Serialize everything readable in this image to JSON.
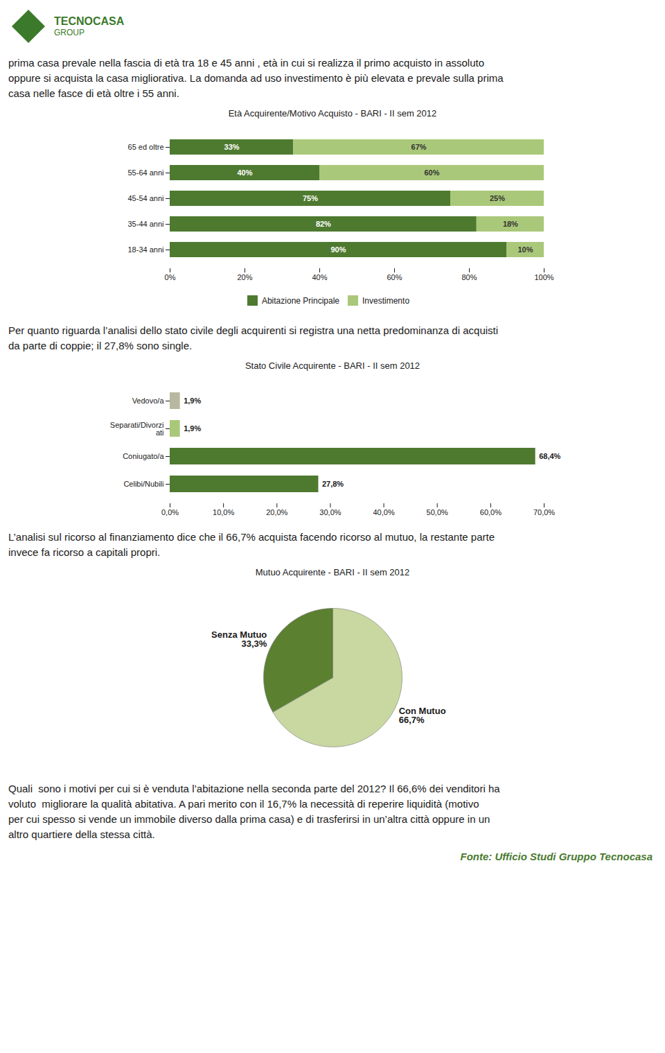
{
  "annotations": {
    "logo": [
      "TECNOCASA",
      "GROUP"
    ],
    "paragraphs": [
      [
        "prima casa prevale nella fascia di età tra 18 e 45 anni , età in cui si realizza il primo acquisto in assoluto",
        "oppure si acquista la casa migliorativa. La domanda ad uso investimento è più elevata e prevale sulla prima",
        "casa nelle fasce di età oltre i 55 anni."
      ],
      [
        "Per quanto riguarda l’analisi dello stato civile degli acquirenti si registra una netta predominanza di acquisti",
        "da parte di coppie; il 27,8% sono single."
      ],
      [
        "L’analisi sul ricorso al finanziamento dice che il 66,7% acquista facendo ricorso al mutuo, la restante parte",
        "invece fa ricorso a capitali propri."
      ],
      [
        "Quali  sono i motivi per cui si è venduta l’abitazione nella seconda parte del 2012? Il 66,6% dei venditori ha",
        "voluto  migliorare la qualità abitativa. A pari merito con il 16,7% la necessità di reperire liquidità (motivo",
        "per cui spesso si vende un immobile diverso dalla prima casa) e di trasferirsi in un’altra città oppure in un",
        "altro quartiere della stessa città."
      ]
    ],
    "footer": "Fonte: Ufficio Studi Gruppo Tecnocasa"
  },
  "chart_data": [
    {
      "type": "bar",
      "title": "Età Acquirente/Motivo Acquisto - BARI - II sem 2012",
      "orientation": "horizontal",
      "stacked": true,
      "categories": [
        "65 ed oltre",
        "55-64 anni",
        "45-54 anni",
        "35-44 anni",
        "18-34 anni"
      ],
      "series": [
        {
          "name": "Abitazione Principale",
          "color": "#4e7a30",
          "values": [
            33,
            40,
            75,
            82,
            90
          ],
          "value_labels": [
            "33%",
            "40%",
            "75%",
            "82%",
            "90%"
          ]
        },
        {
          "name": "Investimento",
          "color": "#aac87a",
          "values": [
            67,
            60,
            25,
            18,
            10
          ],
          "value_labels": [
            "67%",
            "60%",
            "25%",
            "18%",
            "10%"
          ]
        }
      ],
      "xlim": [
        0,
        100
      ],
      "xticks": [
        {
          "value": 0,
          "label": "0%"
        },
        {
          "value": 20,
          "label": "20%"
        },
        {
          "value": 40,
          "label": "40%"
        },
        {
          "value": 60,
          "label": "60%"
        },
        {
          "value": 80,
          "label": "80%"
        },
        {
          "value": 100,
          "label": "100%"
        }
      ],
      "data_labels": true,
      "legend": "lower center",
      "grid": false
    },
    {
      "type": "bar",
      "title": "Stato Civile Acquirente - BARI - II sem 2012",
      "orientation": "horizontal",
      "categories": [
        "Vedovo/a",
        "Separati/Divorzi\nati",
        "Coniugato/a",
        "Celibi/Nubili"
      ],
      "values": [
        1.9,
        1.9,
        68.4,
        27.8
      ],
      "value_labels": [
        "1,9%",
        "1,9%",
        "68,4%",
        "27,8%"
      ],
      "colors": [
        "#b8b8a0",
        "#aac87a",
        "#4e7a30",
        "#4e7a30"
      ],
      "xlim": [
        0,
        70
      ],
      "xticks": [
        {
          "value": 0,
          "label": "0,0%"
        },
        {
          "value": 10,
          "label": "10,0%"
        },
        {
          "value": 20,
          "label": "20,0%"
        },
        {
          "value": 30,
          "label": "30,0%"
        },
        {
          "value": 40,
          "label": "40,0%"
        },
        {
          "value": 50,
          "label": "50,0%"
        },
        {
          "value": 60,
          "label": "60,0%"
        },
        {
          "value": 70,
          "label": "70,0%"
        }
      ],
      "data_labels": true,
      "grid": false
    },
    {
      "type": "pie",
      "title": "Mutuo Acquirente - BARI - II sem 2012",
      "categories": [
        "Con Mutuo",
        "Senza Mutuo"
      ],
      "values": [
        66.7,
        33.3
      ],
      "value_labels": [
        "66,7%",
        "33,3%"
      ],
      "colors": [
        "#c8d8a0",
        "#5a8030"
      ],
      "data_labels": true
    }
  ]
}
